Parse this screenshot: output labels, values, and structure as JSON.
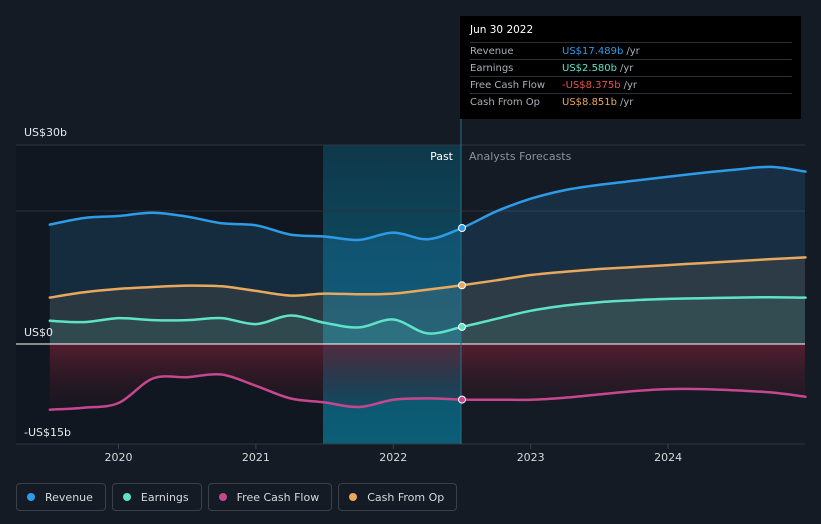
{
  "chart_data": {
    "type": "line",
    "x_ticks": [
      "2020",
      "2021",
      "2022",
      "2023",
      "2024"
    ],
    "y_labels": {
      "top": "US$30b",
      "zero": "US$0",
      "bottom": "-US$15b"
    },
    "ylim": [
      -15,
      30
    ],
    "past_label": "Past",
    "forecast_label": "Analysts Forecasts",
    "series": [
      {
        "name": "Revenue",
        "color": "#2e9be6",
        "values_unit": "US$b",
        "points": [
          [
            2019.5,
            18.0
          ],
          [
            2019.75,
            19.0
          ],
          [
            2020.0,
            19.3
          ],
          [
            2020.25,
            19.8
          ],
          [
            2020.5,
            19.2
          ],
          [
            2020.75,
            18.2
          ],
          [
            2021.0,
            17.9
          ],
          [
            2021.25,
            16.5
          ],
          [
            2021.5,
            16.2
          ],
          [
            2021.75,
            15.7
          ],
          [
            2022.0,
            16.8
          ],
          [
            2022.25,
            15.8
          ],
          [
            2022.5,
            17.489
          ],
          [
            2022.75,
            20.0
          ],
          [
            2023.0,
            21.9
          ],
          [
            2023.25,
            23.2
          ],
          [
            2023.5,
            24.0
          ],
          [
            2023.75,
            24.6
          ],
          [
            2024.0,
            25.2
          ],
          [
            2024.25,
            25.8
          ],
          [
            2024.5,
            26.3
          ],
          [
            2024.75,
            26.7
          ],
          [
            2025.0,
            25.99
          ]
        ]
      },
      {
        "name": "Cash From Op",
        "color": "#e8a85e",
        "values_unit": "US$b",
        "points": [
          [
            2019.5,
            7.0
          ],
          [
            2019.75,
            7.8
          ],
          [
            2020.0,
            8.3
          ],
          [
            2020.25,
            8.6
          ],
          [
            2020.5,
            8.8
          ],
          [
            2020.75,
            8.7
          ],
          [
            2021.0,
            8.0
          ],
          [
            2021.25,
            7.3
          ],
          [
            2021.5,
            7.6
          ],
          [
            2021.75,
            7.5
          ],
          [
            2022.0,
            7.6
          ],
          [
            2022.25,
            8.2
          ],
          [
            2022.5,
            8.851
          ],
          [
            2022.75,
            9.6
          ],
          [
            2023.0,
            10.4
          ],
          [
            2023.25,
            10.9
          ],
          [
            2023.5,
            11.3
          ],
          [
            2023.75,
            11.6
          ],
          [
            2024.0,
            11.9
          ],
          [
            2024.25,
            12.2
          ],
          [
            2024.5,
            12.5
          ],
          [
            2024.75,
            12.8
          ],
          [
            2025.0,
            13.06
          ]
        ]
      },
      {
        "name": "Earnings",
        "color": "#5fe3c8",
        "values_unit": "US$b",
        "points": [
          [
            2019.5,
            3.5
          ],
          [
            2019.75,
            3.3
          ],
          [
            2020.0,
            3.9
          ],
          [
            2020.25,
            3.6
          ],
          [
            2020.5,
            3.6
          ],
          [
            2020.75,
            3.9
          ],
          [
            2021.0,
            3.0
          ],
          [
            2021.25,
            4.3
          ],
          [
            2021.5,
            3.2
          ],
          [
            2021.75,
            2.5
          ],
          [
            2022.0,
            3.7
          ],
          [
            2022.25,
            1.6
          ],
          [
            2022.5,
            2.58
          ],
          [
            2022.75,
            3.8
          ],
          [
            2023.0,
            5.0
          ],
          [
            2023.25,
            5.8
          ],
          [
            2023.5,
            6.3
          ],
          [
            2023.75,
            6.6
          ],
          [
            2024.0,
            6.8
          ],
          [
            2024.25,
            6.9
          ],
          [
            2024.5,
            7.0
          ],
          [
            2024.75,
            7.05
          ],
          [
            2025.0,
            6.99
          ]
        ]
      },
      {
        "name": "Free Cash Flow",
        "color": "#c6478f",
        "values_unit": "US$b",
        "points": [
          [
            2019.5,
            -9.9
          ],
          [
            2019.75,
            -9.6
          ],
          [
            2020.0,
            -8.9
          ],
          [
            2020.25,
            -5.2
          ],
          [
            2020.5,
            -5.0
          ],
          [
            2020.75,
            -4.6
          ],
          [
            2021.0,
            -6.3
          ],
          [
            2021.25,
            -8.2
          ],
          [
            2021.5,
            -8.8
          ],
          [
            2021.75,
            -9.5
          ],
          [
            2022.0,
            -8.4
          ],
          [
            2022.25,
            -8.2
          ],
          [
            2022.5,
            -8.375
          ],
          [
            2022.75,
            -8.4
          ],
          [
            2023.0,
            -8.4
          ],
          [
            2023.25,
            -8.1
          ],
          [
            2023.5,
            -7.6
          ],
          [
            2023.75,
            -7.1
          ],
          [
            2024.0,
            -6.8
          ],
          [
            2024.25,
            -6.8
          ],
          [
            2024.5,
            -7.0
          ],
          [
            2024.75,
            -7.3
          ],
          [
            2025.0,
            -7.95
          ]
        ]
      }
    ]
  },
  "tooltip": {
    "date": "Jun 30 2022",
    "unit": "/yr",
    "rows": [
      {
        "name": "Revenue",
        "value": "US$17.489b",
        "color": "#2e9be6"
      },
      {
        "name": "Earnings",
        "value": "US$2.580b",
        "color": "#5fe3c8"
      },
      {
        "name": "Free Cash Flow",
        "value": "-US$8.375b",
        "color": "#e8514f"
      },
      {
        "name": "Cash From Op",
        "value": "US$8.851b",
        "color": "#e8a85e"
      }
    ]
  },
  "legend": [
    {
      "label": "Revenue",
      "color": "#2e9be6"
    },
    {
      "label": "Earnings",
      "color": "#5fe3c8"
    },
    {
      "label": "Free Cash Flow",
      "color": "#c6478f"
    },
    {
      "label": "Cash From Op",
      "color": "#e8a85e"
    }
  ]
}
